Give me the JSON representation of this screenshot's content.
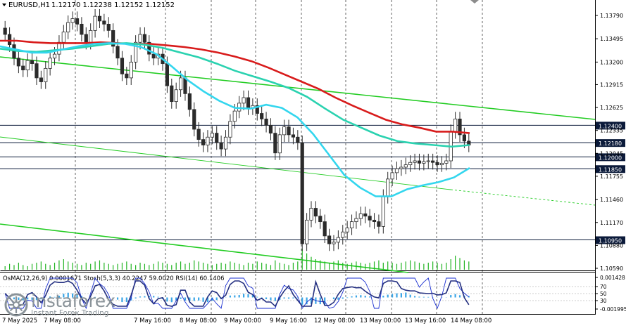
{
  "header": {
    "symbol": "EURUSD,H1",
    "ohlc": "1.12170 1.12238 1.12152 1.12152"
  },
  "osc_header": "OsMA(12,26,9) 0.0001671  Stoch(5,3,3) 40.2247 59.0020  RSI(14) 60.1406",
  "watermark": {
    "brand": "instaforex",
    "tagline": "Instant Forex Trading"
  },
  "colors": {
    "candles": "#2b2b2b",
    "ma_red": "#d81b1b",
    "ma_teal": "#2ad2b0",
    "ma_cyan": "#33d6ee",
    "trendline": "#22cc22",
    "levels": "#0b1a3a",
    "volume": "#22b422",
    "osma": "#3aa5e6",
    "stoch": "#1a2fd0",
    "rsi": "#232f80"
  },
  "chart_data": {
    "type": "line",
    "title": "EURUSD,H1",
    "price_axis": {
      "ylim": [
        1.1059,
        1.1395
      ],
      "ticks": [
        "1.13790",
        "1.13495",
        "1.13200",
        "1.12915",
        "1.12625",
        "1.12335",
        "1.12045",
        "1.11755",
        "1.11460",
        "1.11170",
        "1.10880",
        "1.10590"
      ]
    },
    "horizontal_levels": [
      {
        "label": "1.12400",
        "value": 1.124
      },
      {
        "label": "1.12180",
        "value": 1.1218
      },
      {
        "label": "1.12000",
        "value": 1.12
      },
      {
        "label": "1.11850",
        "value": 1.1185
      },
      {
        "label": "1.10950",
        "value": 1.1095
      }
    ],
    "x_labels": [
      "7 May 2025",
      "7 May 08:00",
      "7 May 16:00",
      "8 May 08:00",
      "9 May 00:00",
      "9 May 16:00",
      "12 May 08:00",
      "13 May 00:00",
      "13 May 16:00",
      "14 May 08:00"
    ],
    "last_price": 1.12152,
    "close_series": [
      1.1355,
      1.1342,
      1.1325,
      1.1315,
      1.131,
      1.1322,
      1.1318,
      1.13,
      1.1295,
      1.1312,
      1.1325,
      1.133,
      1.1345,
      1.1358,
      1.137,
      1.1375,
      1.1368,
      1.1355,
      1.1345,
      1.136,
      1.1378,
      1.1372,
      1.1368,
      1.136,
      1.134,
      1.1325,
      1.1305,
      1.13,
      1.132,
      1.1345,
      1.1355,
      1.1345,
      1.133,
      1.1325,
      1.133,
      1.1318,
      1.129,
      1.127,
      1.1285,
      1.13,
      1.128,
      1.126,
      1.1235,
      1.1222,
      1.1215,
      1.1225,
      1.123,
      1.1218,
      1.121,
      1.1225,
      1.1245,
      1.1258,
      1.1268,
      1.1275,
      1.1262,
      1.1265,
      1.1255,
      1.1248,
      1.124,
      1.123,
      1.1205,
      1.1228,
      1.1238,
      1.1228,
      1.1225,
      1.1218,
      1.109,
      1.112,
      1.1135,
      1.1125,
      1.1118,
      1.11,
      1.109,
      1.1092,
      1.1098,
      1.1105,
      1.111,
      1.1118,
      1.1122,
      1.1128,
      1.1125,
      1.112,
      1.1118,
      1.1112,
      1.115,
      1.1172,
      1.118,
      1.1185,
      1.1187,
      1.119,
      1.1193,
      1.1195,
      1.1192,
      1.1194,
      1.1195,
      1.1193,
      1.119,
      1.1192,
      1.1195,
      1.1232,
      1.1248,
      1.1228,
      1.122,
      1.1215
    ],
    "ma_red": [
      1.1347,
      1.1347,
      1.1345,
      1.1344,
      1.1344,
      1.1344,
      1.1345,
      1.1344,
      1.1343,
      1.1343,
      1.1341,
      1.1339,
      1.1336,
      1.1332,
      1.1327,
      1.1321,
      1.1313,
      1.1304,
      1.1295,
      1.1286,
      1.1275,
      1.1265,
      1.1256,
      1.1247,
      1.1241,
      1.1237,
      1.1232,
      1.1232,
      1.123
    ],
    "ma_teal": [
      1.1337,
      1.1334,
      1.1333,
      1.1335,
      1.1337,
      1.134,
      1.1343,
      1.1344,
      1.1342,
      1.1338,
      1.1332,
      1.1326,
      1.1318,
      1.1309,
      1.1302,
      1.1295,
      1.1287,
      1.1276,
      1.1261,
      1.1247,
      1.1237,
      1.1227,
      1.122,
      1.1217,
      1.1215,
      1.1213,
      1.1215
    ],
    "ma_cyan": [
      1.134,
      1.1336,
      1.1332,
      1.1332,
      1.1336,
      1.134,
      1.1343,
      1.1344,
      1.1343,
      1.1339,
      1.133,
      1.1314,
      1.1297,
      1.1283,
      1.1271,
      1.1262,
      1.1261,
      1.1266,
      1.1262,
      1.125,
      1.1229,
      1.1203,
      1.1177,
      1.1161,
      1.115,
      1.115,
      1.1159,
      1.1164,
      1.1168,
      1.1174,
      1.1186
    ],
    "volume": [
      3,
      5,
      4,
      6,
      4,
      3,
      5,
      6,
      7,
      5,
      4,
      6,
      8,
      9,
      7,
      6,
      5,
      4,
      6,
      5,
      7,
      8,
      6,
      5,
      4,
      5,
      6,
      7,
      5,
      4,
      6,
      5,
      4,
      5,
      7,
      6,
      5,
      4,
      6,
      7,
      5,
      6,
      8,
      7,
      6,
      5,
      4,
      5,
      6,
      5,
      7,
      6,
      5,
      4,
      6,
      5,
      7,
      6,
      5,
      4,
      8,
      6,
      5,
      4,
      6,
      7,
      18,
      14,
      11,
      9,
      8,
      7,
      6,
      7,
      8,
      6,
      5,
      6,
      7,
      6,
      5,
      6,
      7,
      8,
      6,
      7,
      6,
      5,
      6,
      7,
      8,
      7,
      6,
      5,
      6,
      7,
      6,
      5,
      6,
      9,
      12,
      10,
      8,
      7
    ],
    "oscillator": {
      "ylim": [
        -0.001995,
        0.001428
      ],
      "ticks": [
        "0.001428",
        "70",
        "50",
        "30",
        "-0.001995"
      ],
      "osma_last": 0.0001671,
      "stoch_k_last": 40.2247,
      "stoch_d_last": 59.002,
      "rsi_last": 60.1406
    }
  }
}
